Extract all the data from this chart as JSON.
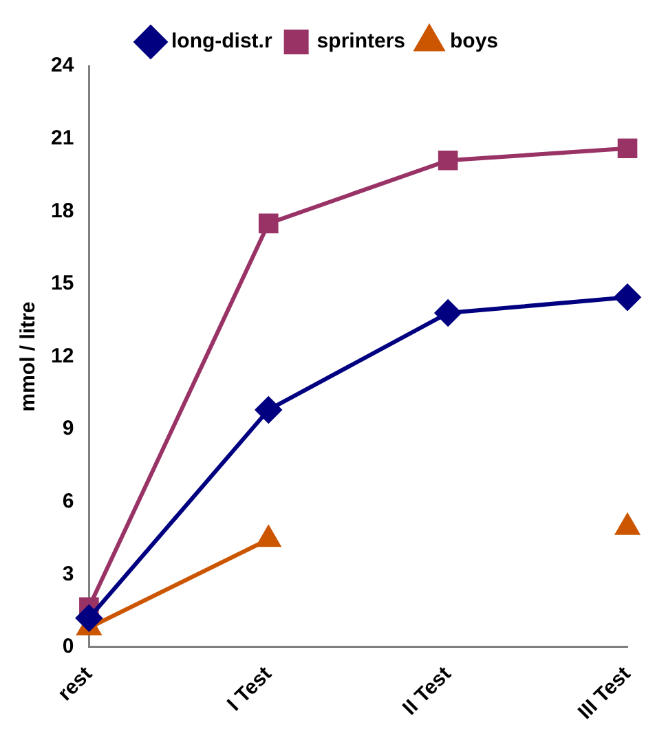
{
  "chart_data": {
    "type": "line",
    "ylabel": "mmol / litre",
    "categories": [
      "rest",
      "I Test",
      "II Test",
      "III Test"
    ],
    "series": [
      {
        "name": "long-dist.r",
        "color": "#000080",
        "marker": "diamond",
        "values": [
          1.2,
          9.8,
          13.8,
          14.45
        ]
      },
      {
        "name": "sprinters",
        "color": "#993366",
        "marker": "square",
        "values": [
          1.65,
          17.5,
          20.1,
          20.6
        ]
      },
      {
        "name": "boys",
        "color": "#cc5500",
        "marker": "triangle",
        "values": [
          0.8,
          4.45,
          null,
          4.95
        ]
      }
    ],
    "ylim": [
      0,
      24
    ],
    "yticks": [
      0,
      3,
      6,
      9,
      12,
      15,
      18,
      21,
      24
    ],
    "grid": false,
    "legend": "top"
  }
}
